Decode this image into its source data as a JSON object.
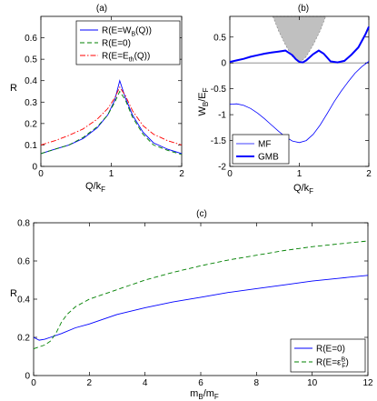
{
  "chart_data": [
    {
      "panel": "(a)",
      "type": "line",
      "xlabel": "Q/k",
      "xlabel_sub": "F",
      "ylabel": "R",
      "xlim": [
        0,
        2
      ],
      "ylim": [
        0,
        0.7
      ],
      "xticks": [
        "0",
        "1",
        "2"
      ],
      "yticks": [
        "0",
        "0.1",
        "0.2",
        "0.3",
        "0.4",
        "0.5",
        "0.6"
      ],
      "legend": "top-right",
      "series": [
        {
          "legend_main": "R(E=W",
          "legend_sub": "B",
          "legend_tail": "(Q))",
          "color": "#0000ff",
          "dash": "",
          "x": [
            0,
            0.2,
            0.4,
            0.6,
            0.8,
            0.95,
            1.05,
            1.12,
            1.2,
            1.3,
            1.45,
            1.6,
            1.8,
            2.0
          ],
          "y": [
            0.06,
            0.08,
            0.1,
            0.13,
            0.18,
            0.24,
            0.31,
            0.4,
            0.32,
            0.24,
            0.16,
            0.11,
            0.08,
            0.06
          ]
        },
        {
          "legend_main": "R(E=0)",
          "legend_sub": "",
          "legend_tail": "",
          "color": "#008000",
          "dash": "5,3",
          "x": [
            0,
            0.2,
            0.4,
            0.6,
            0.8,
            0.95,
            1.05,
            1.12,
            1.2,
            1.3,
            1.45,
            1.6,
            1.8,
            2.0
          ],
          "y": [
            0.06,
            0.08,
            0.1,
            0.135,
            0.185,
            0.24,
            0.3,
            0.35,
            0.31,
            0.23,
            0.15,
            0.1,
            0.075,
            0.055
          ]
        },
        {
          "legend_main": "R(E=E",
          "legend_sub": "th",
          "legend_tail": "(Q))",
          "color": "#ff0000",
          "dash": "6,2,1.5,2",
          "x": [
            0,
            0.2,
            0.4,
            0.6,
            0.8,
            0.95,
            1.05,
            1.12,
            1.2,
            1.3,
            1.45,
            1.6,
            1.8,
            2.0
          ],
          "y": [
            0.1,
            0.12,
            0.145,
            0.175,
            0.22,
            0.27,
            0.32,
            0.37,
            0.33,
            0.26,
            0.19,
            0.15,
            0.12,
            0.1
          ]
        }
      ]
    },
    {
      "panel": "(b)",
      "type": "line",
      "xlabel": "Q/k",
      "xlabel_sub": "F",
      "ylabel": "W",
      "ylabel_sub": "B",
      "ylabel_mid": "/E",
      "ylabel_sub2": "F",
      "xlim": [
        0,
        2
      ],
      "ylim": [
        -2,
        0.9
      ],
      "xticks": [
        "0",
        "1",
        "2"
      ],
      "yticks": [
        "-2",
        "-1.5",
        "-1",
        "-0.5",
        "0",
        "0.5"
      ],
      "legend": "bottom-left",
      "continuum": {
        "color": "#c0c0c0",
        "x": [
          0.62,
          0.7,
          0.8,
          0.9,
          1.0,
          1.1,
          1.2,
          1.3,
          1.38
        ],
        "y": [
          0.9,
          0.62,
          0.35,
          0.12,
          0,
          0.12,
          0.35,
          0.62,
          0.9
        ]
      },
      "series": [
        {
          "name": "MF",
          "color": "#0000ff",
          "width": 0.8,
          "x": [
            0,
            0.1,
            0.2,
            0.3,
            0.4,
            0.5,
            0.6,
            0.7,
            0.8,
            0.9,
            1.0,
            1.1,
            1.2,
            1.3,
            1.4,
            1.5,
            1.6,
            1.7,
            1.8,
            1.9,
            2.0
          ],
          "y": [
            -0.8,
            -0.79,
            -0.82,
            -0.88,
            -0.97,
            -1.08,
            -1.2,
            -1.32,
            -1.43,
            -1.51,
            -1.54,
            -1.5,
            -1.38,
            -1.2,
            -0.98,
            -0.75,
            -0.55,
            -0.37,
            -0.2,
            -0.07,
            0.03
          ]
        },
        {
          "name": "GMB",
          "color": "#0000ff",
          "width": 2.0,
          "x": [
            0,
            0.1,
            0.2,
            0.3,
            0.4,
            0.5,
            0.6,
            0.7,
            0.8,
            0.9,
            0.95,
            1.0,
            1.05,
            1.1,
            1.2,
            1.28,
            1.35,
            1.45,
            1.55,
            1.65,
            1.75,
            1.85,
            1.95,
            2.0
          ],
          "y": [
            0.02,
            0.05,
            0.08,
            0.12,
            0.15,
            0.18,
            0.2,
            0.22,
            0.24,
            0.15,
            0.07,
            0.02,
            0.01,
            0.05,
            0.17,
            0.24,
            0.18,
            0.03,
            0.01,
            0.04,
            0.16,
            0.3,
            0.55,
            0.7
          ]
        }
      ]
    },
    {
      "panel": "(c)",
      "type": "line",
      "xlabel": "m",
      "xlabel_sub": "B",
      "xlabel_mid": "/m",
      "xlabel_sub2": "F",
      "ylabel": "R",
      "xlim": [
        0,
        12
      ],
      "ylim": [
        0,
        0.8
      ],
      "xticks": [
        "0",
        "2",
        "4",
        "6",
        "8",
        "10",
        "12"
      ],
      "yticks": [
        "0",
        "0.2",
        "0.4",
        "0.6",
        "0.8"
      ],
      "legend": "bottom-right",
      "series": [
        {
          "legend_main": "R(E=0)",
          "legend_sub": "",
          "legend_sup": "",
          "color": "#0000ff",
          "dash": "",
          "x": [
            0,
            0.2,
            0.4,
            0.6,
            1,
            1.5,
            2,
            3,
            4,
            5,
            6,
            7,
            8,
            9,
            10,
            11,
            12
          ],
          "y": [
            0.2,
            0.185,
            0.19,
            0.2,
            0.22,
            0.25,
            0.27,
            0.32,
            0.355,
            0.385,
            0.41,
            0.435,
            0.455,
            0.475,
            0.495,
            0.51,
            0.525
          ]
        },
        {
          "legend_main": "R(E=ε",
          "legend_sub": "F",
          "legend_sup": "B",
          "legend_tail": ")",
          "color": "#008000",
          "dash": "5,3",
          "x": [
            0,
            0.2,
            0.4,
            0.6,
            0.8,
            1.0,
            1.2,
            1.5,
            2,
            3,
            4,
            5,
            6,
            7,
            8,
            9,
            10,
            11,
            12
          ],
          "y": [
            0.14,
            0.15,
            0.16,
            0.18,
            0.22,
            0.28,
            0.32,
            0.36,
            0.4,
            0.45,
            0.5,
            0.54,
            0.575,
            0.605,
            0.63,
            0.655,
            0.675,
            0.69,
            0.705
          ]
        }
      ]
    }
  ]
}
